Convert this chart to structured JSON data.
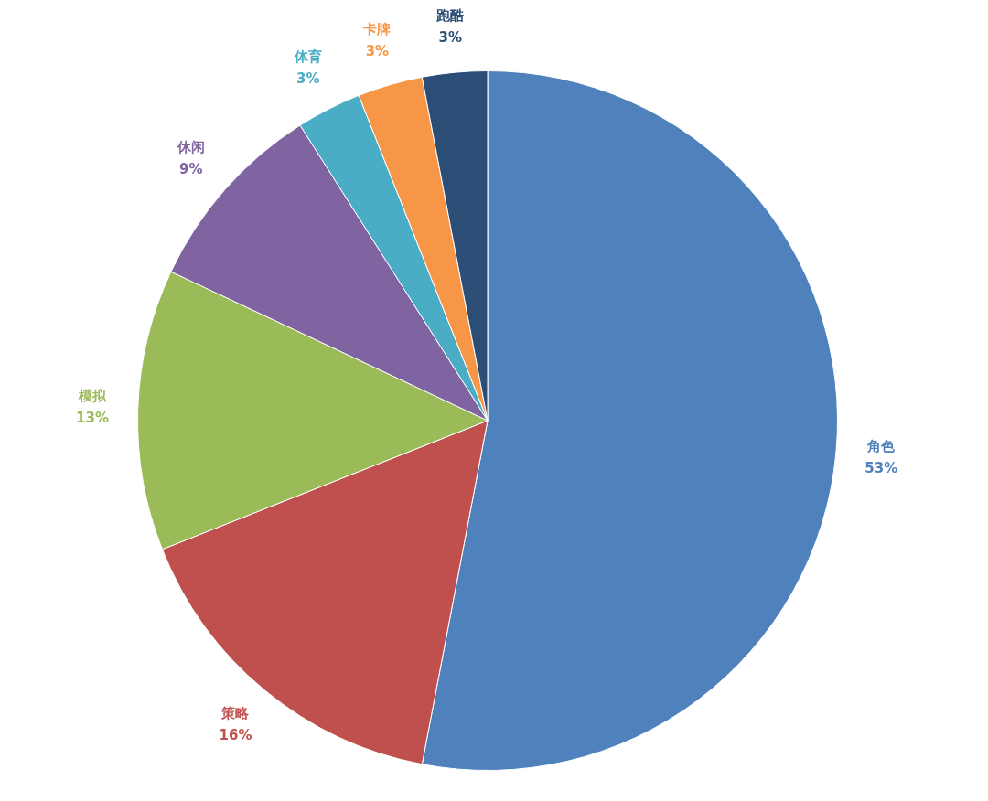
{
  "chart_data": {
    "type": "pie",
    "categories": [
      "角色",
      "策略",
      "模拟",
      "休闲",
      "体育",
      "卡牌",
      "跑酷"
    ],
    "values": [
      53,
      16,
      13,
      9,
      3,
      3,
      3
    ],
    "colors": [
      "#4f81bd",
      "#c0504d",
      "#9bbb59",
      "#8064a2",
      "#4bacc6",
      "#f79646",
      "#2c4d75"
    ],
    "value_labels": [
      "53%",
      "16%",
      "13%",
      "9%",
      "3%",
      "3%",
      "3%"
    ],
    "legend": false
  }
}
